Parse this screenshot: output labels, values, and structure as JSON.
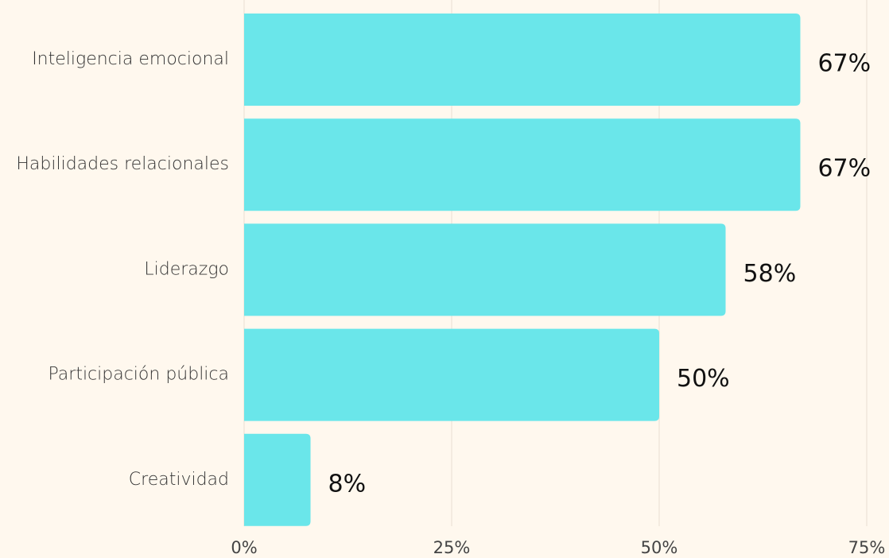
{
  "chart_data": {
    "type": "bar",
    "orientation": "horizontal",
    "categories": [
      "Inteligencia emocional",
      "Habilidades relacionales",
      "Liderazgo",
      "Participación pública",
      "Creatividad"
    ],
    "values": [
      67,
      67,
      58,
      50,
      8
    ],
    "value_labels": [
      "67%",
      "67%",
      "58%",
      "50%",
      "8%"
    ],
    "color": "#6ae6ea",
    "xlim": [
      0,
      75
    ],
    "xticks": [
      {
        "value": 0,
        "label": "0%"
      },
      {
        "value": 25,
        "label": "25%"
      },
      {
        "value": 50,
        "label": "50%"
      },
      {
        "value": 75,
        "label": "75%"
      }
    ],
    "grid": true
  }
}
